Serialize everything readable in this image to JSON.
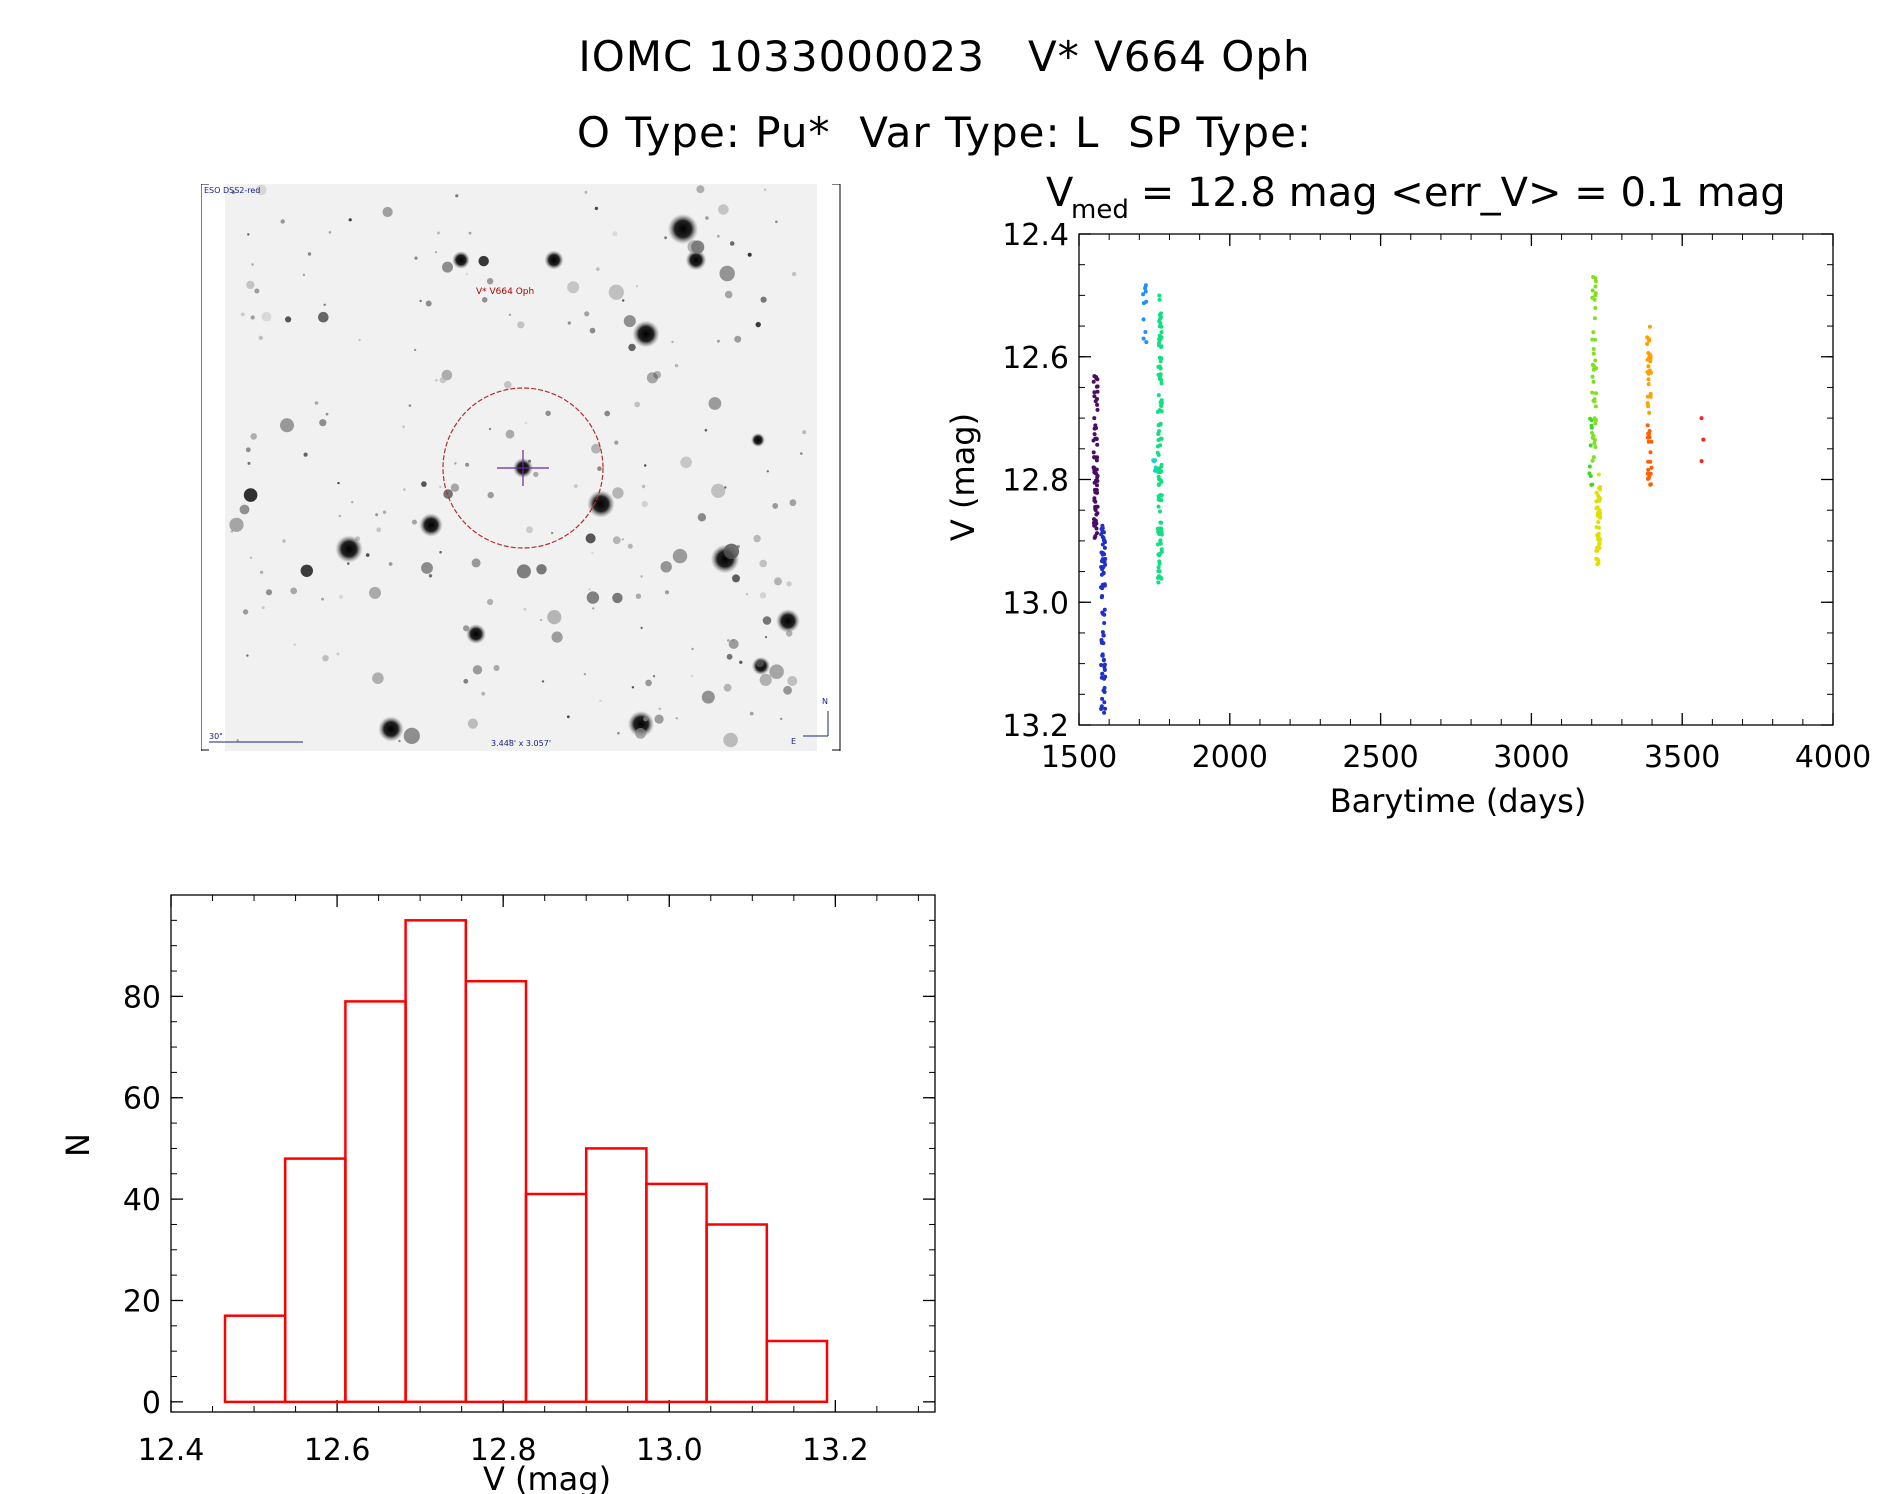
{
  "header": {
    "line1": "IOMC 1033000023   V* V664 Oph",
    "line2": "O Type: Pu*  Var Type: L  SP Type:"
  },
  "finder_chart": {
    "survey_label": "ESO DSS2-red",
    "target_label": "V* V664 Oph",
    "scale_label": "30\"",
    "fov_label": "3.448' x 3.057'",
    "north_label": "N",
    "east_label": "E"
  },
  "colors": {
    "axis": "#000000",
    "histogram": "#ff0000",
    "finder_circle": "#b03030"
  },
  "chart_data": [
    {
      "id": "light-curve",
      "type": "scatter",
      "title_prefix": "V",
      "title_subscript": "med",
      "title_rest": " = 12.8 mag <err_V> = 0.1 mag",
      "xlabel": "Barytime (days)",
      "ylabel": "V (mag)",
      "xlim": [
        1500,
        4000
      ],
      "ylim": [
        13.2,
        12.4
      ],
      "xticks": [
        1500,
        2000,
        2500,
        3000,
        3500,
        4000
      ],
      "xtick_labels": [
        "1500",
        "2000",
        "2500",
        "3000",
        "3500",
        "4000"
      ],
      "yticks": [
        12.4,
        12.6,
        12.8,
        13.0,
        13.2
      ],
      "ytick_labels": [
        "12.4",
        "12.6",
        "12.8",
        "13.0",
        "13.2"
      ],
      "groups": [
        {
          "x": 1555,
          "y_min": 12.63,
          "y_max": 12.9,
          "n": 70,
          "color": "#4a0d66"
        },
        {
          "x": 1580,
          "y_min": 12.87,
          "y_max": 13.18,
          "n": 75,
          "color": "#2030c8"
        },
        {
          "x": 1718,
          "y_min": 12.48,
          "y_max": 12.58,
          "n": 10,
          "color": "#1e90ff"
        },
        {
          "x": 1752,
          "y_min": 12.76,
          "y_max": 12.79,
          "n": 8,
          "color": "#20d0d0"
        },
        {
          "x": 1768,
          "y_min": 12.5,
          "y_max": 12.97,
          "n": 110,
          "color": "#10e080"
        },
        {
          "x": 3195,
          "y_min": 12.7,
          "y_max": 12.81,
          "n": 10,
          "color": "#40d820"
        },
        {
          "x": 3208,
          "y_min": 12.47,
          "y_max": 12.78,
          "n": 40,
          "color": "#80e020"
        },
        {
          "x": 3222,
          "y_min": 12.79,
          "y_max": 12.94,
          "n": 45,
          "color": "#e0e000"
        },
        {
          "x": 3390,
          "y_min": 12.55,
          "y_max": 12.7,
          "n": 25,
          "color": "#ffa000"
        },
        {
          "x": 3392,
          "y_min": 12.71,
          "y_max": 12.81,
          "n": 20,
          "color": "#ff6000"
        },
        {
          "x": 3570,
          "y_min": 12.7,
          "y_max": 12.77,
          "n": 3,
          "color": "#ff2020"
        }
      ]
    },
    {
      "id": "histogram",
      "type": "bar",
      "xlabel": "V (mag)",
      "ylabel": "N",
      "xlim": [
        12.4,
        13.32
      ],
      "ylim": [
        -2,
        100
      ],
      "xticks": [
        12.4,
        12.6,
        12.8,
        13.0,
        13.2
      ],
      "xtick_labels": [
        "12.4",
        "12.6",
        "12.8",
        "13.0",
        "13.2"
      ],
      "yticks": [
        0,
        20,
        40,
        60,
        80
      ],
      "ytick_labels": [
        "0",
        "20",
        "40",
        "60",
        "80"
      ],
      "bin_edges": [
        12.465,
        12.5375,
        12.61,
        12.6825,
        12.755,
        12.8275,
        12.9,
        12.9725,
        13.045,
        13.1175,
        13.19
      ],
      "counts": [
        17,
        48,
        79,
        95,
        83,
        41,
        50,
        43,
        35,
        12
      ]
    }
  ]
}
